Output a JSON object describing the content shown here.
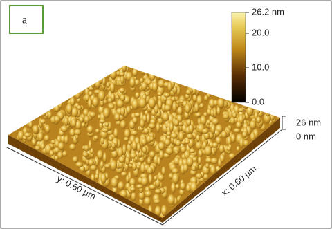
{
  "panel_label": "a",
  "colorbar": {
    "labels": [
      "26.2 nm",
      "20.0",
      "10.0",
      "0.0"
    ]
  },
  "z_scale": {
    "top": "26 nm",
    "bottom": "0 nm"
  },
  "axes": {
    "y": "y: 0.60 µm",
    "x": "x: 0.60 µm"
  }
}
